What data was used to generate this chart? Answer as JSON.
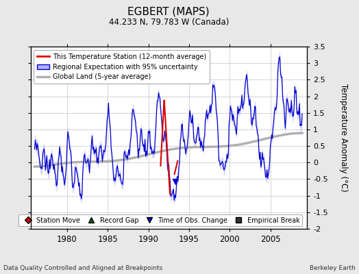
{
  "title": "EGBERT (MAPS)",
  "subtitle": "44.233 N, 79.783 W (Canada)",
  "ylabel": "Temperature Anomaly (°C)",
  "footer_left": "Data Quality Controlled and Aligned at Breakpoints",
  "footer_right": "Berkeley Earth",
  "xlim": [
    1975.5,
    2009.5
  ],
  "ylim": [
    -2.0,
    3.5
  ],
  "yticks": [
    -2,
    -1.5,
    -1,
    -0.5,
    0,
    0.5,
    1,
    1.5,
    2,
    2.5,
    3,
    3.5
  ],
  "xticks": [
    1980,
    1985,
    1990,
    1995,
    2000,
    2005
  ],
  "bg_color": "#e8e8e8",
  "plot_bg_color": "#ffffff",
  "regional_line_color": "#0000cc",
  "regional_fill_color": "#b0b0ff",
  "station_line_color": "#dd0000",
  "global_line_color": "#b0b0b0",
  "legend_entries": [
    "This Temperature Station (12-month average)",
    "Regional Expectation with 95% uncertainty",
    "Global Land (5-year average)"
  ],
  "marker_legend": [
    {
      "marker": "D",
      "color": "#cc0000",
      "label": "Station Move"
    },
    {
      "marker": "^",
      "color": "#006600",
      "label": "Record Gap"
    },
    {
      "marker": "v",
      "color": "#0000cc",
      "label": "Time of Obs. Change"
    },
    {
      "marker": "s",
      "color": "#333333",
      "label": "Empirical Break"
    }
  ],
  "time_obs_change_x": 1993.3,
  "time_obs_change_y": -0.58
}
